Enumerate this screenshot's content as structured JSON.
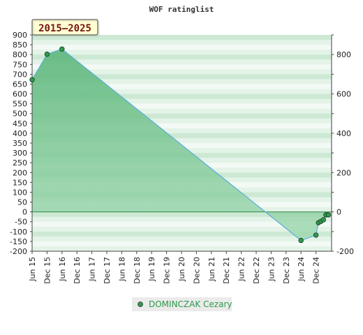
{
  "chart_data": {
    "type": "area",
    "title": "WOF ratinglist",
    "period_badge": "2015–2025",
    "xlabel": "",
    "ylabel": "",
    "x_ticks": [
      "Jun 15",
      "Dec 15",
      "Jun 16",
      "Dec 16",
      "Jun 17",
      "Dec 17",
      "Jun 18",
      "Dec 18",
      "Jun 19",
      "Dec 19",
      "Jun 20",
      "Dec 20",
      "Jun 21",
      "Dec 21",
      "Jun 22",
      "Dec 22",
      "Jun 23",
      "Dec 23",
      "Jun 24",
      "Dec 24"
    ],
    "y_left": {
      "ticks": [
        900,
        850,
        800,
        750,
        700,
        650,
        600,
        550,
        500,
        450,
        400,
        350,
        300,
        250,
        200,
        150,
        100,
        50,
        0,
        -50,
        -100,
        -150,
        -200
      ],
      "ylim": [
        -200,
        900
      ]
    },
    "y_right": {
      "ticks": [
        800,
        600,
        400,
        200,
        0,
        -200
      ],
      "ylim": [
        -200,
        900
      ]
    },
    "series": [
      {
        "name": "DOMINCZAK Cezary",
        "color": "#2e9a4c",
        "line_color": "#5aaedc",
        "points": [
          {
            "x": "2015-06",
            "y": 672
          },
          {
            "x": "2015-12",
            "y": 802
          },
          {
            "x": "2016-06",
            "y": 828
          },
          {
            "x": "2024-06",
            "y": -145
          },
          {
            "x": "2024-12",
            "y": -118
          },
          {
            "x": "2025-01",
            "y": -55
          },
          {
            "x": "2025-02",
            "y": -48
          },
          {
            "x": "2025-03",
            "y": -40
          },
          {
            "x": "2025-04",
            "y": -15
          },
          {
            "x": "2025-05",
            "y": -15
          }
        ]
      }
    ],
    "grid": true,
    "legend": "bottom"
  },
  "legend": {
    "label": "DOMINCZAK Cezary"
  }
}
